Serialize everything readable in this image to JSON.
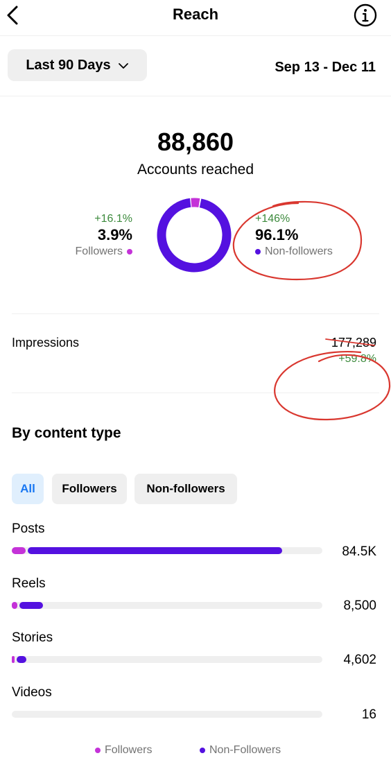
{
  "header": {
    "title": "Reach",
    "back_icon": "chevron-left-icon",
    "info_icon": "info-icon"
  },
  "range": {
    "label": "Last 90 Days",
    "icon": "chevron-down-icon",
    "dates": "Sep 13 - Dec 11"
  },
  "summary": {
    "total": "88,860",
    "label": "Accounts reached"
  },
  "segments": {
    "followers": {
      "delta": "+16.1%",
      "percent": "3.9%",
      "label": "Followers",
      "share": 0.039,
      "color": "#c432d8"
    },
    "non_followers": {
      "delta": "+146%",
      "percent": "96.1%",
      "label": "Non-followers",
      "share": 0.961,
      "color": "#5411e0"
    }
  },
  "impressions": {
    "label": "Impressions",
    "value": "177,289",
    "delta": "+59.8%"
  },
  "content_type": {
    "title": "By content type",
    "filters": [
      "All",
      "Followers",
      "Non-followers"
    ],
    "active_filter": "All",
    "rows": [
      {
        "label": "Posts",
        "value": "84.5K",
        "followers_frac": 0.045,
        "non_followers_frac": 0.82
      },
      {
        "label": "Reels",
        "value": "8,500",
        "followers_frac": 0.018,
        "non_followers_frac": 0.075
      },
      {
        "label": "Stories",
        "value": "4,602",
        "followers_frac": 0.008,
        "non_followers_frac": 0.032
      },
      {
        "label": "Videos",
        "value": "16",
        "followers_frac": 0,
        "non_followers_frac": 0
      }
    ]
  },
  "legend": {
    "followers": "Followers",
    "non_followers": "Non-Followers"
  },
  "colors": {
    "followers": "#c432d8",
    "non_followers": "#5411e0",
    "positive": "#3c8a3c",
    "annotation": "#d9372f",
    "chip_active_bg": "#e0effd",
    "chip_active_text": "#1877f2"
  }
}
